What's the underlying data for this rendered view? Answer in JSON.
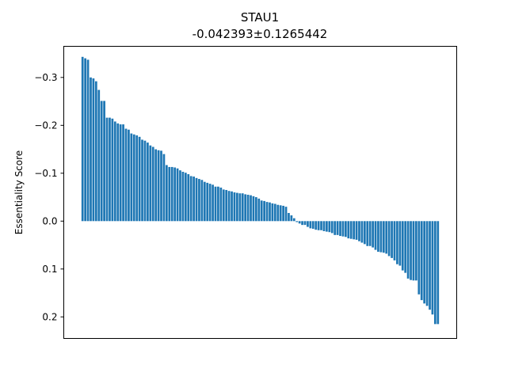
{
  "chart_data": {
    "type": "bar",
    "title": "STAU1",
    "subtitle": "-0.042393±0.1265442",
    "xlabel": "",
    "ylabel": "Essentiality Score",
    "ylim": [
      0.245,
      -0.365
    ],
    "y_inverted": true,
    "yticks": [
      {
        "value": -0.3,
        "label": "−0.3"
      },
      {
        "value": -0.2,
        "label": "−0.2"
      },
      {
        "value": -0.1,
        "label": "−0.1"
      },
      {
        "value": 0.0,
        "label": "0.0"
      },
      {
        "value": 0.1,
        "label": "0.1"
      },
      {
        "value": 0.2,
        "label": "0.2"
      }
    ],
    "grid": false,
    "bar_color": "#1f77b4",
    "values": [
      -0.343,
      -0.34,
      -0.337,
      -0.3,
      -0.298,
      -0.292,
      -0.274,
      -0.251,
      -0.251,
      -0.216,
      -0.216,
      -0.214,
      -0.208,
      -0.204,
      -0.202,
      -0.202,
      -0.193,
      -0.191,
      -0.183,
      -0.181,
      -0.179,
      -0.176,
      -0.17,
      -0.168,
      -0.164,
      -0.158,
      -0.155,
      -0.15,
      -0.148,
      -0.147,
      -0.14,
      -0.117,
      -0.113,
      -0.113,
      -0.112,
      -0.11,
      -0.106,
      -0.103,
      -0.101,
      -0.098,
      -0.094,
      -0.093,
      -0.09,
      -0.088,
      -0.086,
      -0.082,
      -0.08,
      -0.078,
      -0.076,
      -0.072,
      -0.072,
      -0.07,
      -0.066,
      -0.065,
      -0.063,
      -0.062,
      -0.06,
      -0.059,
      -0.058,
      -0.058,
      -0.056,
      -0.055,
      -0.054,
      -0.052,
      -0.05,
      -0.047,
      -0.043,
      -0.042,
      -0.04,
      -0.039,
      -0.037,
      -0.036,
      -0.034,
      -0.033,
      -0.032,
      -0.03,
      -0.017,
      -0.012,
      -0.006,
      0.002,
      0.005,
      0.008,
      0.008,
      0.012,
      0.015,
      0.016,
      0.018,
      0.019,
      0.019,
      0.021,
      0.022,
      0.023,
      0.025,
      0.029,
      0.029,
      0.031,
      0.032,
      0.033,
      0.036,
      0.037,
      0.038,
      0.039,
      0.042,
      0.045,
      0.048,
      0.052,
      0.052,
      0.055,
      0.06,
      0.064,
      0.065,
      0.066,
      0.068,
      0.073,
      0.077,
      0.082,
      0.09,
      0.093,
      0.103,
      0.108,
      0.12,
      0.123,
      0.124,
      0.124,
      0.153,
      0.165,
      0.172,
      0.177,
      0.185,
      0.195,
      0.215,
      0.215
    ]
  }
}
